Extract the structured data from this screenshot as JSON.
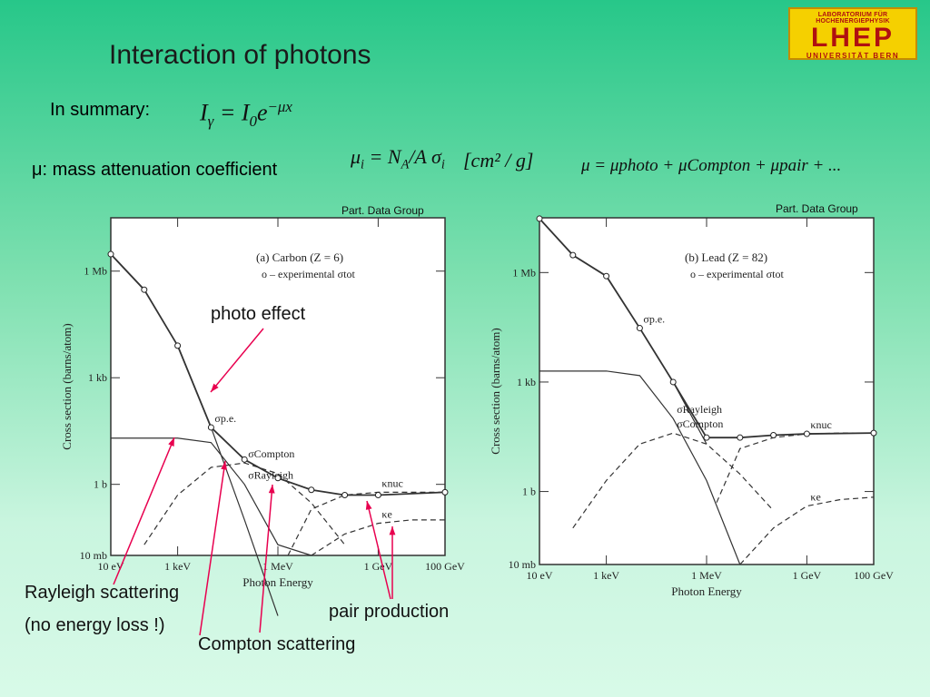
{
  "title": "Interaction of photons",
  "logo": {
    "line1": "LABORATORIUM FÜR HOCHENERGIEPHYSIK",
    "line2": "LHEP",
    "line3": "UNIVERSITÄT BERN"
  },
  "summary_label": "In summary:",
  "mac_label": "μ: mass attenuation coefficient",
  "eq_units": "[cm² / g]",
  "eq_sum": "μ = μphoto + μCompton + μpair + ...",
  "source_left": "Part. Data Group",
  "source_right": "Part. Data Group",
  "callouts": {
    "photo": "photo effect",
    "rayleigh": "Rayleigh scattering",
    "noloss": "(no energy loss !)",
    "pair": "pair production",
    "compton": "Compton scattering"
  },
  "colors": {
    "callout_arrow": "#e8004f",
    "plot_bg": "#ffffff"
  },
  "chart_data": [
    {
      "type": "line",
      "title": "(a) Carbon (Z = 6)",
      "xlabel": "Photon Energy",
      "ylabel": "Cross section (barns/atom)",
      "x_scale": "log",
      "y_scale": "log",
      "x_ticks": [
        "10 eV",
        "1 keV",
        "1 MeV",
        "1 GeV",
        "100 GeV"
      ],
      "x_tick_energy_eV": [
        10,
        1000,
        1000000,
        1000000000,
        100000000000
      ],
      "y_ticks": [
        "10 mb",
        "1 b",
        "1 kb",
        "1 Mb"
      ],
      "y_tick_barns": [
        0.01,
        1,
        1000,
        1000000
      ],
      "legend": "o – experimental σtot",
      "series_labels": [
        "σp.e.",
        "σRayleigh",
        "σCompton",
        "κnuc",
        "κe"
      ],
      "series": [
        {
          "name": "σp.e.",
          "x": [
            10,
            100,
            1000,
            10000,
            100000,
            1000000
          ],
          "values": [
            3000000,
            300000,
            8000,
            40,
            0.1,
            0.0002
          ]
        },
        {
          "name": "σRayleigh",
          "x": [
            10,
            1000,
            10000,
            100000,
            1000000,
            10000000
          ],
          "values": [
            20,
            20,
            15,
            1,
            0.02,
            0.01
          ]
        },
        {
          "name": "σCompton",
          "x": [
            100,
            1000,
            10000,
            100000,
            1000000,
            10000000,
            100000000
          ],
          "values": [
            0.02,
            0.5,
            3,
            4,
            2,
            0.3,
            0.02
          ]
        },
        {
          "name": "κnuc",
          "x": [
            2000000,
            10000000,
            100000000,
            1000000000,
            10000000000,
            100000000000
          ],
          "values": [
            0.01,
            0.2,
            0.5,
            0.6,
            0.6,
            0.6
          ]
        },
        {
          "name": "κe",
          "x": [
            10000000,
            100000000,
            1000000000,
            10000000000,
            100000000000
          ],
          "values": [
            0.01,
            0.04,
            0.08,
            0.1,
            0.1
          ]
        },
        {
          "name": "σtot",
          "x": [
            10,
            100,
            1000,
            10000,
            100000,
            1000000,
            10000000,
            100000000,
            1000000000,
            100000000000
          ],
          "values": [
            3000000,
            300000,
            8000,
            40,
            5,
            1.5,
            0.7,
            0.5,
            0.5,
            0.6
          ]
        }
      ]
    },
    {
      "type": "line",
      "title": "(b) Lead (Z = 82)",
      "xlabel": "Photon Energy",
      "ylabel": "Cross section (barns/atom)",
      "x_scale": "log",
      "y_scale": "log",
      "x_ticks": [
        "10 eV",
        "1 keV",
        "1 MeV",
        "1 GeV",
        "100 GeV"
      ],
      "x_tick_energy_eV": [
        10,
        1000,
        1000000,
        1000000000,
        100000000000
      ],
      "y_ticks": [
        "10 mb",
        "1 b",
        "1 kb",
        "1 Mb"
      ],
      "y_tick_barns": [
        0.01,
        1,
        1000,
        1000000
      ],
      "legend": "o – experimental σtot",
      "series_labels": [
        "σp.e.",
        "σRayleigh",
        "σCompton",
        "κnuc",
        "κe"
      ],
      "series": [
        {
          "name": "σp.e.",
          "x": [
            10,
            100,
            1000,
            10000,
            100000,
            1000000
          ],
          "values": [
            30000000,
            3000000,
            800000,
            30000,
            1000,
            20
          ]
        },
        {
          "name": "σRayleigh",
          "x": [
            10,
            1000,
            10000,
            100000,
            1000000,
            10000000
          ],
          "values": [
            2000,
            2000,
            1500,
            100,
            2,
            0.01
          ]
        },
        {
          "name": "σCompton",
          "x": [
            100,
            1000,
            10000,
            100000,
            1000000,
            10000000,
            100000000
          ],
          "values": [
            0.1,
            2,
            20,
            40,
            20,
            3,
            0.3
          ]
        },
        {
          "name": "κnuc",
          "x": [
            2000000,
            10000000,
            100000000,
            1000000000,
            10000000000,
            100000000000
          ],
          "values": [
            0.5,
            15,
            30,
            38,
            40,
            40
          ]
        },
        {
          "name": "κe",
          "x": [
            10000000,
            100000000,
            1000000000,
            10000000000,
            100000000000
          ],
          "values": [
            0.01,
            0.1,
            0.4,
            0.6,
            0.7
          ]
        },
        {
          "name": "σtot",
          "x": [
            10,
            100,
            1000,
            10000,
            100000,
            1000000,
            10000000,
            100000000,
            1000000000,
            100000000000
          ],
          "values": [
            30000000,
            3000000,
            800000,
            30000,
            1000,
            30,
            30,
            35,
            38,
            40
          ]
        }
      ]
    }
  ]
}
